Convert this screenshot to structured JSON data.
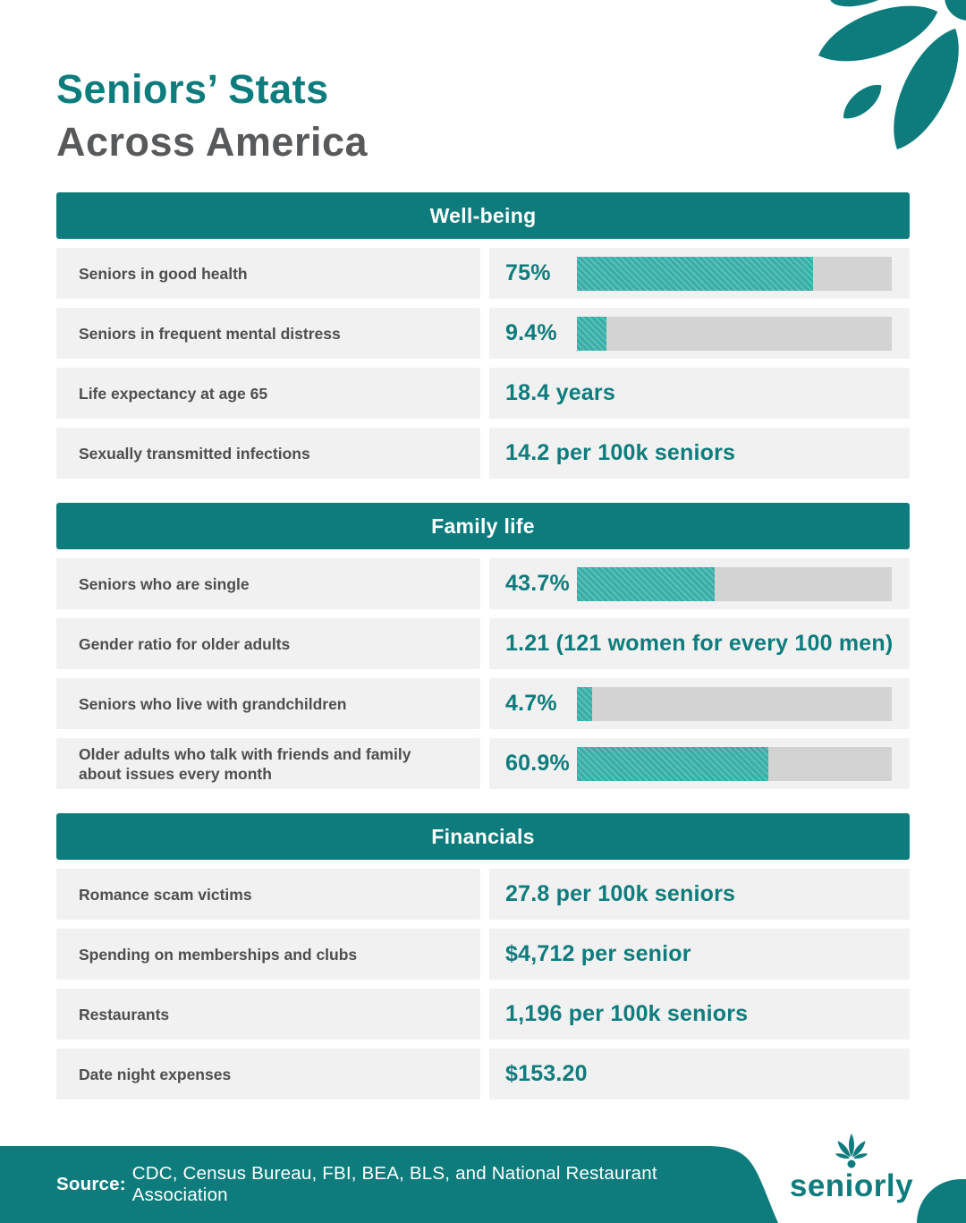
{
  "title": {
    "line1": "Seniors’ Stats",
    "line2": "Across America"
  },
  "colors": {
    "accent": "#0E7C7D",
    "bar_fill": "#3AB3AB",
    "bar_track": "#D3D3D3",
    "row_bg": "#F1F1F1",
    "label_color": "#4E4E50",
    "title_gray": "#58595B",
    "white": "#FFFFFF"
  },
  "icons": {
    "leaf_decoration": "leaf-cluster-icon",
    "brand_icon": "seniorly-flower-icon"
  },
  "sections": [
    {
      "heading": "Well-being",
      "rows": [
        {
          "label": "Seniors in good health",
          "value": "75%",
          "bar_percent": 75
        },
        {
          "label": "Seniors in frequent mental distress",
          "value": "9.4%",
          "bar_percent": 9.4
        },
        {
          "label": "Life expectancy at age 65",
          "value": "18.4 years"
        },
        {
          "label": "Sexually transmitted infections",
          "value": "14.2 per 100k seniors"
        }
      ]
    },
    {
      "heading": "Family life",
      "rows": [
        {
          "label": "Seniors who are single",
          "value": "43.7%",
          "bar_percent": 43.7
        },
        {
          "label": "Gender ratio for older adults",
          "value": "1.21 (121 women for every 100 men)"
        },
        {
          "label": "Seniors who live with grandchildren",
          "value": "4.7%",
          "bar_percent": 4.7
        },
        {
          "label": "Older adults who talk with friends and family about issues every month",
          "value": "60.9%",
          "bar_percent": 60.9
        }
      ]
    },
    {
      "heading": "Financials",
      "rows": [
        {
          "label": "Romance scam victims",
          "value": "27.8 per 100k seniors"
        },
        {
          "label": "Spending on memberships and clubs",
          "value": "$4,712 per senior"
        },
        {
          "label": "Restaurants",
          "value": "1,196 per 100k seniors"
        },
        {
          "label": "Date night expenses",
          "value": "$153.20"
        }
      ]
    }
  ],
  "footer": {
    "source_label": "Source:",
    "source_text": "CDC, Census Bureau, FBI, BEA, BLS, and National Restaurant Association",
    "brand": "seniorly"
  },
  "chart_data": [
    {
      "type": "bar",
      "title": "Well-being",
      "categories": [
        "Seniors in good health",
        "Seniors in frequent mental distress"
      ],
      "values": [
        75,
        9.4
      ],
      "unit": "%",
      "xlim": [
        0,
        100
      ],
      "orientation": "horizontal",
      "text_stats": [
        {
          "label": "Life expectancy at age 65",
          "value": "18.4 years"
        },
        {
          "label": "Sexually transmitted infections",
          "value": "14.2 per 100k seniors"
        }
      ]
    },
    {
      "type": "bar",
      "title": "Family life",
      "categories": [
        "Seniors who are single",
        "Seniors who live with grandchildren",
        "Older adults who talk with friends and family about issues every month"
      ],
      "values": [
        43.7,
        4.7,
        60.9
      ],
      "unit": "%",
      "xlim": [
        0,
        100
      ],
      "orientation": "horizontal",
      "text_stats": [
        {
          "label": "Gender ratio for older adults",
          "value": "1.21 (121 women for every 100 men)"
        }
      ]
    },
    {
      "type": "table",
      "title": "Financials",
      "rows": [
        [
          "Romance scam victims",
          "27.8 per 100k seniors"
        ],
        [
          "Spending on memberships and clubs",
          "$4,712 per senior"
        ],
        [
          "Restaurants",
          "1,196 per 100k seniors"
        ],
        [
          "Date night expenses",
          "$153.20"
        ]
      ]
    }
  ]
}
